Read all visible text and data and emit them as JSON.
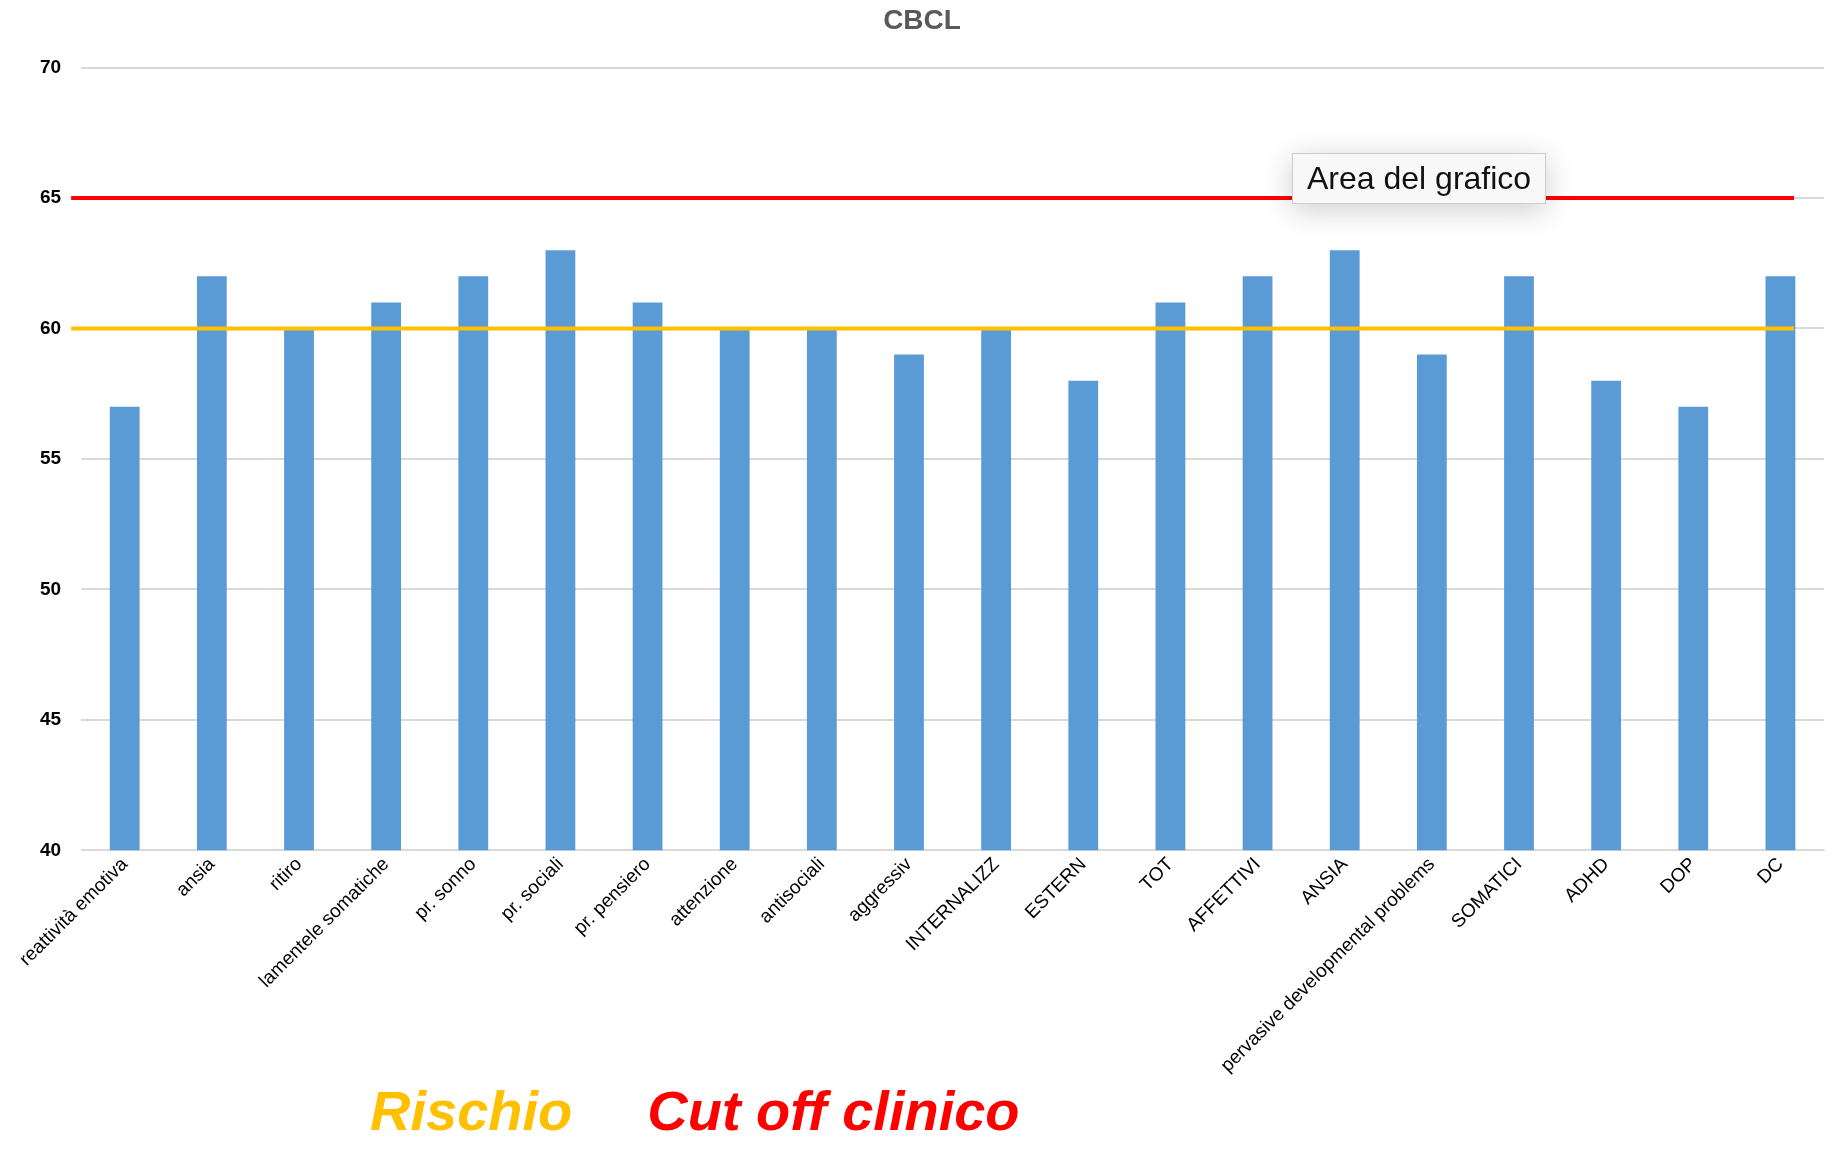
{
  "chart_data": {
    "type": "bar",
    "title": "CBCL",
    "categories": [
      "reattività emotiva",
      "ansia",
      "ritiro",
      "lamentele somatiche",
      "pr. sonno",
      "pr. sociali",
      "pr. pensiero",
      "attenzione",
      "antisociali",
      "aggressiv",
      "INTERNALIZZ",
      "ESTERN",
      "TOT",
      "AFFETTIVI",
      "ANSIA",
      "pervasive developmental problems",
      "SOMATICI",
      "ADHD",
      "DOP",
      "DC"
    ],
    "values": [
      57,
      62,
      60,
      61,
      62,
      63,
      61,
      60,
      60,
      59,
      60,
      58,
      61,
      62,
      63,
      59,
      62,
      58,
      57,
      62
    ],
    "color": "#5b9bd5",
    "ylim": [
      40,
      70
    ],
    "yticks": [
      40,
      45,
      50,
      55,
      60,
      65,
      70
    ],
    "grid": "y",
    "ref_lines": [
      {
        "axis": "y",
        "value": 60,
        "label": "Rischio",
        "color": "#ffc000"
      },
      {
        "axis": "y",
        "value": 65,
        "label": "Cut off clinico",
        "color": "#ff0000"
      }
    ],
    "annotations": [
      "Area del grafico"
    ]
  }
}
